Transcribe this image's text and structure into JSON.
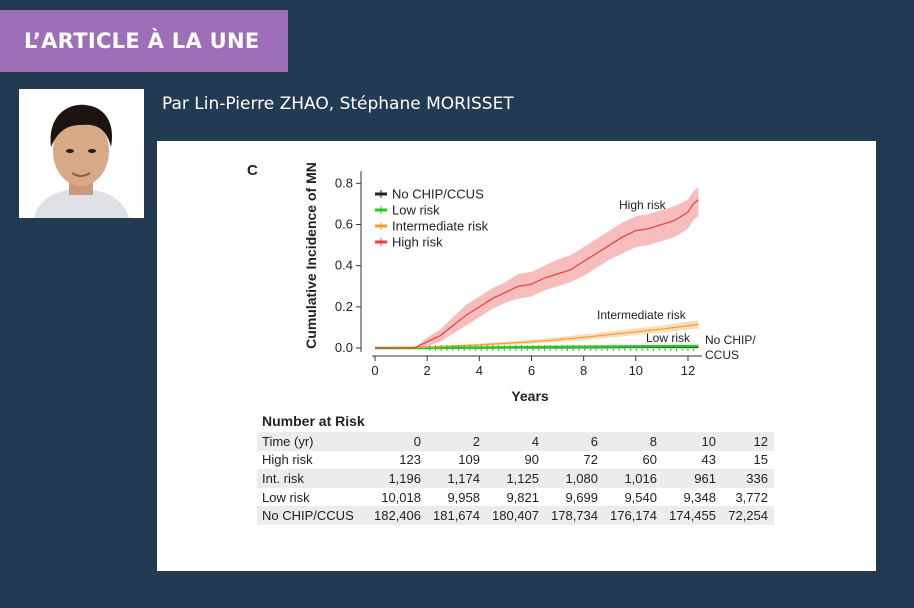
{
  "header": {
    "banner_label": "L’ARTICLE À LA UNE",
    "authors": "Par Lin-Pierre ZHAO, Stéphane MORISSET"
  },
  "colors": {
    "background": "#233a53",
    "banner": "#9c6fb8",
    "high": "#e8403f",
    "intermediate": "#f0a030",
    "low": "#2bc42b",
    "none": "#222222"
  },
  "chart_data": {
    "type": "line",
    "panel_label": "C",
    "ylabel": "Cumulative Incidence of MN",
    "xlabel": "Years",
    "xlim": [
      0,
      12.5
    ],
    "ylim": [
      0,
      0.85
    ],
    "xticks": [
      0,
      2,
      4,
      6,
      8,
      10,
      12
    ],
    "yticks": [
      0.0,
      0.2,
      0.4,
      0.6,
      0.8
    ],
    "ytick_labels": [
      "0.0",
      "0.2",
      "0.4",
      "0.6",
      "0.8"
    ],
    "legend_position": "top-left",
    "series": [
      {
        "name": "No CHIP/CCUS",
        "end_label": [
          "No CHIP/",
          "CCUS"
        ],
        "color": "#222222",
        "x": [
          0,
          2,
          4,
          6,
          8,
          10,
          12.4
        ],
        "y": [
          0.0,
          0.001,
          0.002,
          0.002,
          0.003,
          0.004,
          0.004
        ]
      },
      {
        "name": "Low risk",
        "end_label": [
          "Low risk"
        ],
        "color": "#2bc42b",
        "x": [
          0,
          2,
          4,
          6,
          8,
          10,
          12.4
        ],
        "y": [
          0.0,
          0.0,
          0.002,
          0.004,
          0.006,
          0.008,
          0.01
        ]
      },
      {
        "name": "Intermediate risk",
        "end_label": [
          "Intermediate risk"
        ],
        "color": "#f0a030",
        "x": [
          0,
          2,
          4,
          6,
          7,
          8,
          9,
          10,
          11,
          12,
          12.4
        ],
        "y": [
          0.0,
          0.004,
          0.015,
          0.03,
          0.04,
          0.052,
          0.065,
          0.078,
          0.092,
          0.108,
          0.115
        ],
        "lower": [
          0.0,
          0.0,
          0.008,
          0.02,
          0.028,
          0.038,
          0.05,
          0.062,
          0.075,
          0.088,
          0.093
        ],
        "upper": [
          0.0,
          0.01,
          0.022,
          0.04,
          0.052,
          0.066,
          0.08,
          0.094,
          0.109,
          0.128,
          0.135
        ]
      },
      {
        "name": "High risk",
        "end_label": [
          "High risk"
        ],
        "color": "#e8403f",
        "x": [
          0,
          1.5,
          2,
          2.5,
          3,
          3.5,
          4,
          4.5,
          5,
          5.5,
          6,
          6.5,
          7,
          7.5,
          8,
          8.5,
          9,
          9.5,
          10,
          10.5,
          11,
          11.5,
          12,
          12.2,
          12.4
        ],
        "y": [
          0.0,
          0.0,
          0.03,
          0.06,
          0.11,
          0.16,
          0.2,
          0.24,
          0.27,
          0.3,
          0.31,
          0.34,
          0.36,
          0.38,
          0.42,
          0.46,
          0.5,
          0.54,
          0.57,
          0.58,
          0.6,
          0.62,
          0.66,
          0.7,
          0.72
        ],
        "lower": [
          0.0,
          0.0,
          0.01,
          0.03,
          0.07,
          0.11,
          0.15,
          0.19,
          0.22,
          0.24,
          0.25,
          0.28,
          0.3,
          0.32,
          0.35,
          0.39,
          0.43,
          0.46,
          0.49,
          0.5,
          0.52,
          0.54,
          0.58,
          0.62,
          0.64
        ],
        "upper": [
          0.0,
          0.0,
          0.05,
          0.09,
          0.15,
          0.21,
          0.25,
          0.29,
          0.32,
          0.36,
          0.37,
          0.4,
          0.43,
          0.45,
          0.49,
          0.53,
          0.57,
          0.61,
          0.64,
          0.65,
          0.67,
          0.69,
          0.72,
          0.76,
          0.78
        ]
      }
    ]
  },
  "risk_table": {
    "title": "Number at Risk",
    "header": [
      "Time (yr)",
      "0",
      "2",
      "4",
      "6",
      "8",
      "10",
      "12"
    ],
    "rows": [
      [
        "High risk",
        "123",
        "109",
        "90",
        "72",
        "60",
        "43",
        "15"
      ],
      [
        "Int. risk",
        "1,196",
        "1,174",
        "1,125",
        "1,080",
        "1,016",
        "961",
        "336"
      ],
      [
        "Low risk",
        "10,018",
        "9,958",
        "9,821",
        "9,699",
        "9,540",
        "9,348",
        "3,772"
      ],
      [
        "No CHIP/CCUS",
        "182,406",
        "181,674",
        "180,407",
        "178,734",
        "176,174",
        "174,455",
        "72,254"
      ]
    ]
  }
}
